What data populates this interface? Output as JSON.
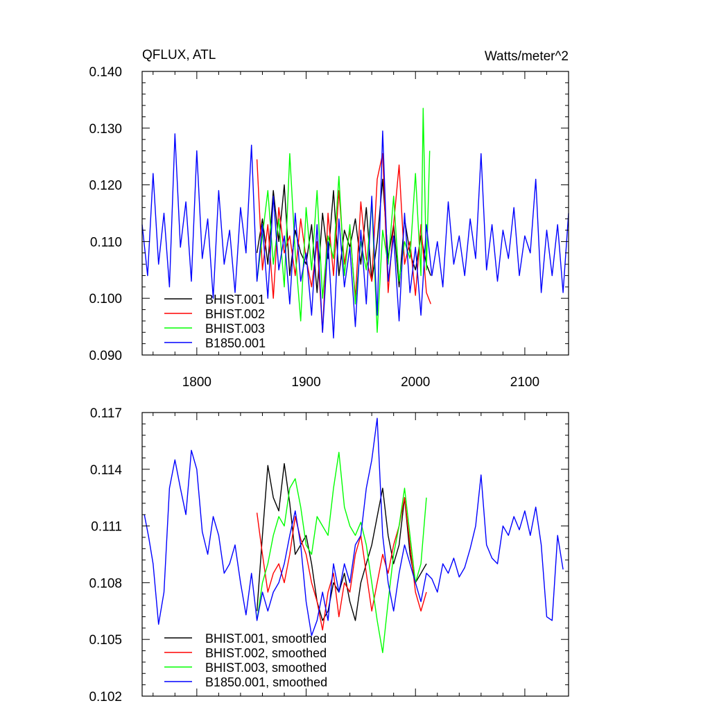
{
  "chart_data": [
    {
      "type": "line",
      "title_left": "QFLUX, ATL",
      "title_right": "Watts/meter^2",
      "xlabel": "",
      "ylabel": "",
      "xlim": [
        1750,
        2140
      ],
      "ylim": [
        0.09,
        0.14
      ],
      "x_ticks": [
        1800,
        1900,
        2000,
        2100
      ],
      "x_tick_labels": [
        "1800",
        "1900",
        "2000",
        "2100"
      ],
      "y_ticks": [
        0.09,
        0.1,
        0.11,
        0.12,
        0.13,
        0.14
      ],
      "y_tick_labels": [
        "0.090",
        "0.100",
        "0.110",
        "0.120",
        "0.130",
        "0.140"
      ],
      "legend_position": "bottom-left",
      "series": [
        {
          "name": "BHIST.001",
          "color": "#000000",
          "x": [
            1855,
            1860,
            1865,
            1870,
            1875,
            1880,
            1885,
            1890,
            1895,
            1900,
            1905,
            1910,
            1915,
            1920,
            1925,
            1930,
            1935,
            1940,
            1945,
            1950,
            1955,
            1960,
            1965,
            1970,
            1975,
            1980,
            1985,
            1990,
            1995,
            2000,
            2005,
            2010,
            2014
          ],
          "y": [
            0.108,
            0.114,
            0.106,
            0.119,
            0.11,
            0.12,
            0.104,
            0.112,
            0.108,
            0.106,
            0.113,
            0.101,
            0.115,
            0.107,
            0.119,
            0.104,
            0.112,
            0.109,
            0.114,
            0.106,
            0.116,
            0.103,
            0.11,
            0.121,
            0.107,
            0.113,
            0.102,
            0.114,
            0.108,
            0.105,
            0.111,
            0.106,
            0.104
          ]
        },
        {
          "name": "BHIST.002",
          "color": "#ff0000",
          "x": [
            1855,
            1860,
            1865,
            1870,
            1875,
            1880,
            1885,
            1890,
            1895,
            1900,
            1905,
            1910,
            1915,
            1920,
            1925,
            1930,
            1935,
            1940,
            1945,
            1950,
            1955,
            1960,
            1965,
            1970,
            1975,
            1980,
            1985,
            1990,
            1995,
            2000,
            2005,
            2010,
            2014
          ],
          "y": [
            0.1245,
            0.105,
            0.113,
            0.1,
            0.116,
            0.108,
            0.111,
            0.104,
            0.114,
            0.107,
            0.102,
            0.11,
            0.094,
            0.115,
            0.104,
            0.119,
            0.106,
            0.112,
            0.1,
            0.117,
            0.107,
            0.103,
            0.121,
            0.1255,
            0.101,
            0.113,
            0.1235,
            0.106,
            0.11,
            0.1005,
            0.113,
            0.101,
            0.099
          ]
        },
        {
          "name": "BHIST.003",
          "color": "#00ff00",
          "x": [
            1855,
            1860,
            1865,
            1870,
            1875,
            1880,
            1885,
            1890,
            1895,
            1900,
            1905,
            1910,
            1915,
            1920,
            1925,
            1930,
            1935,
            1940,
            1945,
            1950,
            1955,
            1960,
            1965,
            1970,
            1975,
            1980,
            1985,
            1990,
            1995,
            2000,
            2005,
            2007,
            2010,
            2013
          ],
          "y": [
            0.103,
            0.111,
            0.119,
            0.106,
            0.114,
            0.102,
            0.1255,
            0.108,
            0.096,
            0.116,
            0.105,
            0.119,
            0.1,
            0.111,
            0.107,
            0.1215,
            0.104,
            0.113,
            0.099,
            0.11,
            0.105,
            0.117,
            0.094,
            0.112,
            0.106,
            0.118,
            0.103,
            0.11,
            0.107,
            0.122,
            0.104,
            0.1335,
            0.105,
            0.126
          ]
        },
        {
          "name": "B1850.001",
          "color": "#0000ff",
          "x": [
            1750,
            1755,
            1760,
            1765,
            1770,
            1775,
            1780,
            1785,
            1790,
            1795,
            1800,
            1805,
            1810,
            1815,
            1820,
            1825,
            1830,
            1835,
            1840,
            1845,
            1850,
            1855,
            1860,
            1865,
            1870,
            1875,
            1880,
            1885,
            1890,
            1895,
            1900,
            1905,
            1910,
            1915,
            1920,
            1925,
            1930,
            1935,
            1940,
            1945,
            1950,
            1955,
            1960,
            1965,
            1970,
            1975,
            1980,
            1985,
            1990,
            1995,
            2000,
            2005,
            2010,
            2015,
            2020,
            2025,
            2030,
            2035,
            2040,
            2045,
            2050,
            2055,
            2060,
            2065,
            2070,
            2075,
            2080,
            2085,
            2090,
            2095,
            2100,
            2105,
            2110,
            2115,
            2120,
            2125,
            2130,
            2135,
            2140
          ],
          "y": [
            0.113,
            0.104,
            0.122,
            0.106,
            0.115,
            0.102,
            0.129,
            0.109,
            0.117,
            0.103,
            0.126,
            0.107,
            0.114,
            0.1,
            0.119,
            0.106,
            0.112,
            0.101,
            0.116,
            0.108,
            0.127,
            0.103,
            0.113,
            0.1,
            0.118,
            0.105,
            0.111,
            0.099,
            0.115,
            0.103,
            0.108,
            0.097,
            0.113,
            0.094,
            0.11,
            0.093,
            0.114,
            0.102,
            0.109,
            0.095,
            0.112,
            0.099,
            0.118,
            0.097,
            0.1295,
            0.103,
            0.111,
            0.096,
            0.115,
            0.101,
            0.109,
            0.097,
            0.113,
            0.104,
            0.11,
            0.102,
            0.117,
            0.106,
            0.111,
            0.104,
            0.114,
            0.107,
            0.1255,
            0.105,
            0.113,
            0.103,
            0.112,
            0.107,
            0.116,
            0.104,
            0.111,
            0.108,
            0.121,
            0.101,
            0.112,
            0.104,
            0.113,
            0.101,
            0.115
          ]
        }
      ]
    },
    {
      "type": "line",
      "xlabel": "",
      "ylabel": "",
      "xlim": [
        1750,
        2140
      ],
      "ylim": [
        0.102,
        0.117
      ],
      "x_ticks": [
        1800,
        1900,
        2000,
        2100
      ],
      "y_ticks": [
        0.102,
        0.105,
        0.108,
        0.111,
        0.114,
        0.117
      ],
      "y_tick_labels": [
        "0.102",
        "0.105",
        "0.108",
        "0.111",
        "0.114",
        "0.117"
      ],
      "legend_position": "bottom-left",
      "series": [
        {
          "name": "BHIST.001, smoothed",
          "color": "#000000",
          "x": [
            1855,
            1860,
            1865,
            1870,
            1875,
            1880,
            1885,
            1890,
            1895,
            1900,
            1905,
            1910,
            1915,
            1920,
            1925,
            1930,
            1935,
            1940,
            1945,
            1950,
            1955,
            1960,
            1965,
            1970,
            1975,
            1980,
            1985,
            1990,
            1995,
            2000,
            2005,
            2010
          ],
          "y": [
            0.1065,
            0.1105,
            0.1142,
            0.1125,
            0.1118,
            0.1143,
            0.1122,
            0.1095,
            0.11,
            0.1105,
            0.109,
            0.107,
            0.106,
            0.1065,
            0.108,
            0.1075,
            0.1085,
            0.107,
            0.106,
            0.108,
            0.109,
            0.11,
            0.1115,
            0.113,
            0.1105,
            0.109,
            0.11,
            0.1125,
            0.1095,
            0.108,
            0.1085,
            0.109
          ]
        },
        {
          "name": "BHIST.002, smoothed",
          "color": "#ff0000",
          "x": [
            1855,
            1860,
            1865,
            1870,
            1875,
            1880,
            1885,
            1890,
            1895,
            1900,
            1905,
            1910,
            1915,
            1920,
            1925,
            1930,
            1935,
            1940,
            1945,
            1950,
            1955,
            1960,
            1965,
            1970,
            1975,
            1980,
            1985,
            1990,
            1995,
            2000,
            2005,
            2010
          ],
          "y": [
            0.1117,
            0.1095,
            0.1075,
            0.1085,
            0.109,
            0.108,
            0.1095,
            0.1115,
            0.1103,
            0.1095,
            0.108,
            0.107,
            0.1055,
            0.1075,
            0.1085,
            0.1062,
            0.108,
            0.1075,
            0.1095,
            0.1105,
            0.1085,
            0.1065,
            0.108,
            0.1095,
            0.1085,
            0.11,
            0.111,
            0.1125,
            0.11,
            0.1075,
            0.1065,
            0.1075
          ]
        },
        {
          "name": "BHIST.003, smoothed",
          "color": "#00ff00",
          "x": [
            1855,
            1860,
            1865,
            1870,
            1875,
            1880,
            1885,
            1890,
            1895,
            1900,
            1905,
            1910,
            1915,
            1920,
            1925,
            1930,
            1935,
            1940,
            1945,
            1950,
            1955,
            1960,
            1965,
            1970,
            1975,
            1980,
            1985,
            1990,
            1995,
            2000,
            2005,
            2010
          ],
          "y": [
            0.106,
            0.108,
            0.109,
            0.1105,
            0.1115,
            0.111,
            0.113,
            0.1135,
            0.112,
            0.11,
            0.1095,
            0.1115,
            0.111,
            0.1105,
            0.113,
            0.1149,
            0.112,
            0.111,
            0.1105,
            0.1112,
            0.11,
            0.108,
            0.106,
            0.1043,
            0.107,
            0.1095,
            0.111,
            0.113,
            0.1105,
            0.108,
            0.109,
            0.1125
          ]
        },
        {
          "name": "B1850.001, smoothed",
          "color": "#0000ff",
          "x": [
            1752,
            1756,
            1760,
            1765,
            1770,
            1775,
            1780,
            1785,
            1790,
            1795,
            1800,
            1805,
            1810,
            1815,
            1820,
            1825,
            1830,
            1835,
            1840,
            1845,
            1850,
            1855,
            1860,
            1865,
            1870,
            1875,
            1880,
            1885,
            1890,
            1895,
            1900,
            1905,
            1910,
            1915,
            1920,
            1925,
            1930,
            1935,
            1940,
            1945,
            1950,
            1955,
            1960,
            1965,
            1970,
            1975,
            1980,
            1985,
            1990,
            1995,
            2000,
            2005,
            2010,
            2015,
            2020,
            2025,
            2030,
            2035,
            2040,
            2045,
            2050,
            2055,
            2060,
            2065,
            2070,
            2075,
            2080,
            2085,
            2090,
            2095,
            2100,
            2105,
            2110,
            2115,
            2120,
            2125,
            2130,
            2135
          ],
          "y": [
            0.1116,
            0.1104,
            0.109,
            0.1058,
            0.1075,
            0.113,
            0.1145,
            0.113,
            0.1116,
            0.115,
            0.114,
            0.1107,
            0.1095,
            0.1115,
            0.1105,
            0.1085,
            0.109,
            0.11,
            0.108,
            0.1063,
            0.1085,
            0.106,
            0.1075,
            0.1065,
            0.1075,
            0.108,
            0.109,
            0.1105,
            0.1118,
            0.11,
            0.107,
            0.1052,
            0.106,
            0.1075,
            0.106,
            0.109,
            0.1075,
            0.109,
            0.108,
            0.11,
            0.1105,
            0.113,
            0.1145,
            0.1167,
            0.1105,
            0.108,
            0.1065,
            0.1085,
            0.11,
            0.109,
            0.108,
            0.107,
            0.1085,
            0.1082,
            0.1075,
            0.109,
            0.1085,
            0.1093,
            0.1083,
            0.1088,
            0.1098,
            0.111,
            0.1137,
            0.11,
            0.1093,
            0.109,
            0.111,
            0.1105,
            0.1115,
            0.1108,
            0.1118,
            0.1105,
            0.112,
            0.11,
            0.1062,
            0.106,
            0.1105,
            0.1087
          ]
        }
      ]
    }
  ]
}
